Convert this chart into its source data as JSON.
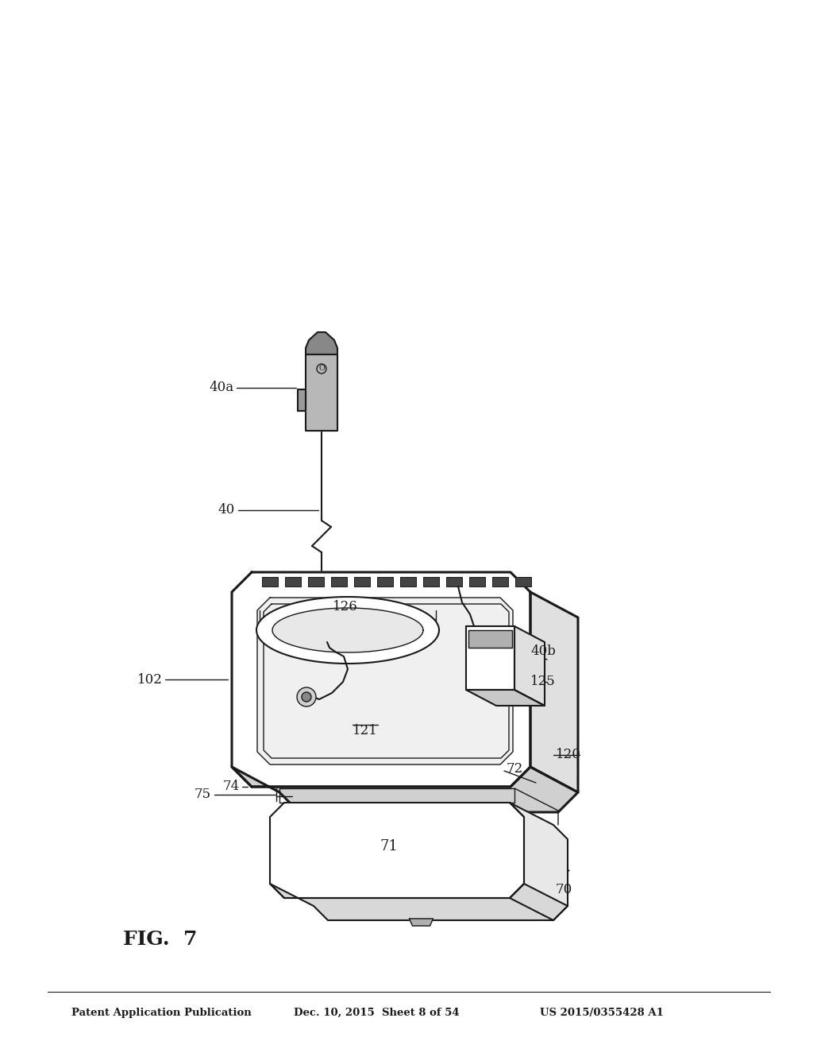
{
  "bg_color": "#ffffff",
  "line_color": "#1a1a1a",
  "fig_label": "FIG.  7",
  "header_left": "Patent Application Publication",
  "header_mid": "Dec. 10, 2015  Sheet 8 of 54",
  "header_right": "US 2015/0355428 A1"
}
